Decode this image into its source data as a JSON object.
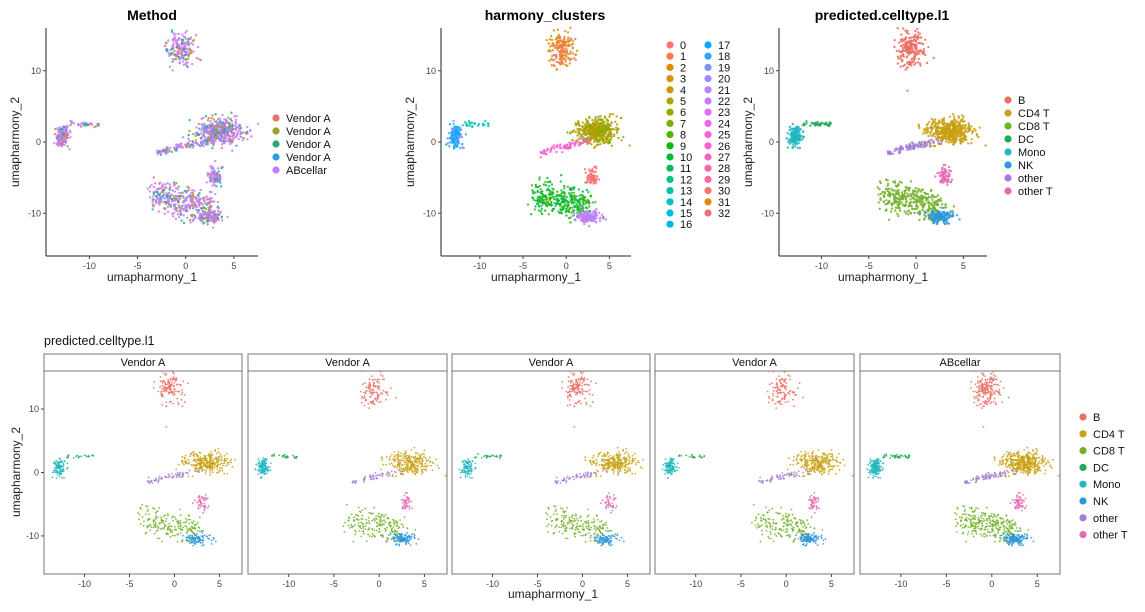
{
  "section_title": "predicted.celltype.l1",
  "colors": {
    "method": [
      "#E8756A",
      "#9CA226",
      "#2AA86E",
      "#2D9FD8",
      "#C77CFF"
    ],
    "clusters": [
      "#F8766D",
      "#F07E50",
      "#E38900",
      "#D39200",
      "#C49A00",
      "#B0A200",
      "#99A800",
      "#7CAE00",
      "#53B400",
      "#0BB702",
      "#00BA38",
      "#00BE67",
      "#00C08B",
      "#00C1A9",
      "#00BFC4",
      "#00BBDC",
      "#00B4F0",
      "#00A9FF",
      "#35A2FF",
      "#7997FF",
      "#9F8AFF",
      "#BB82FF",
      "#C77CFF",
      "#DF70F8",
      "#EF67EB",
      "#FA62DB",
      "#FF61CC",
      "#FF62BC",
      "#FF65AA",
      "#FF6A98",
      "#F8766D",
      "#E58700",
      "#ED6F6F"
    ],
    "celltype": [
      "#EA6E64",
      "#C9A010",
      "#72B027",
      "#21A85C",
      "#23B7BF",
      "#2C97DD",
      "#A47CD6",
      "#E36BB5"
    ]
  },
  "chart_data": [
    {
      "type": "scatter",
      "title": "Method",
      "xlabel": "umapharmony_1",
      "ylabel": "umapharmony_2",
      "xlim": [
        -14.5,
        7.5
      ],
      "ylim": [
        -16,
        16
      ],
      "xticks": [
        "-10",
        "-5",
        "0",
        "5"
      ],
      "yticks": [
        "10",
        "0",
        "-10"
      ],
      "color_by": "Method",
      "legend_entries": [
        "Vendor A",
        "Vendor A",
        "Vendor A",
        "Vendor A",
        "ABcellar"
      ],
      "legend_position": "right"
    },
    {
      "type": "scatter",
      "title": "harmony_clusters",
      "xlabel": "umapharmony_1",
      "ylabel": "umapharmony_2",
      "xlim": [
        -14.5,
        7.5
      ],
      "ylim": [
        -16,
        16
      ],
      "xticks": [
        "-10",
        "-5",
        "0",
        "5"
      ],
      "yticks": [
        "10",
        "0",
        "-10"
      ],
      "color_by": "harmony_clusters",
      "legend_entries": [
        "0",
        "1",
        "2",
        "3",
        "4",
        "5",
        "6",
        "7",
        "8",
        "9",
        "10",
        "11",
        "12",
        "13",
        "14",
        "15",
        "16",
        "17",
        "18",
        "19",
        "20",
        "21",
        "22",
        "23",
        "24",
        "25",
        "26",
        "27",
        "28",
        "29",
        "30",
        "31",
        "32"
      ],
      "legend_position": "right"
    },
    {
      "type": "scatter",
      "title": "predicted.celltype.l1",
      "xlabel": "umapharmony_1",
      "ylabel": "umapharmony_2",
      "xlim": [
        -14.5,
        7.5
      ],
      "ylim": [
        -16,
        16
      ],
      "xticks": [
        "-10",
        "-5",
        "0",
        "5"
      ],
      "yticks": [
        "10",
        "0",
        "-10"
      ],
      "color_by": "predicted.celltype.l1",
      "legend_entries": [
        "B",
        "CD4 T",
        "CD8 T",
        "DC",
        "Mono",
        "NK",
        "other",
        "other T"
      ],
      "legend_position": "right"
    },
    {
      "type": "scatter",
      "title": "",
      "facets": [
        "Vendor A",
        "Vendor A",
        "Vendor A",
        "Vendor A",
        "ABcellar"
      ],
      "xlabel": "umapharmony_1",
      "ylabel": "umapharmony_2",
      "xlim": [
        -14.5,
        7.5
      ],
      "ylim": [
        -16,
        16
      ],
      "xticks": [
        "-10",
        "-5",
        "0",
        "5"
      ],
      "yticks": [
        "10",
        "0",
        "-10"
      ],
      "color_by": "predicted.celltype.l1",
      "legend_entries": [
        "B",
        "CD4 T",
        "CD8 T",
        "DC",
        "Mono",
        "NK",
        "other",
        "other T"
      ],
      "legend_position": "right",
      "clusters": [
        {
          "name": "B",
          "center": [
            -0.5,
            13
          ],
          "spread": [
            1.3,
            2.2
          ]
        },
        {
          "name": "CD4 T",
          "center": [
            3.5,
            1.5
          ],
          "spread": [
            2.2,
            1.6
          ]
        },
        {
          "name": "CD8 T",
          "center": [
            -0.5,
            -7.5
          ],
          "spread": [
            2.0,
            1.4
          ]
        },
        {
          "name": "DC",
          "center": [
            -10.2,
            2.7
          ],
          "spread": [
            1.0,
            0.3
          ]
        },
        {
          "name": "Mono",
          "center": [
            -12.8,
            0.8
          ],
          "spread": [
            0.6,
            1.4
          ]
        },
        {
          "name": "NK",
          "center": [
            2.5,
            -10.5
          ],
          "spread": [
            1.3,
            0.8
          ]
        },
        {
          "name": "other",
          "center": [
            0.0,
            0.2
          ],
          "spread": [
            2.0,
            0.5
          ]
        },
        {
          "name": "other T",
          "center": [
            3.0,
            -4.8
          ],
          "spread": [
            0.6,
            1.2
          ]
        }
      ]
    }
  ]
}
